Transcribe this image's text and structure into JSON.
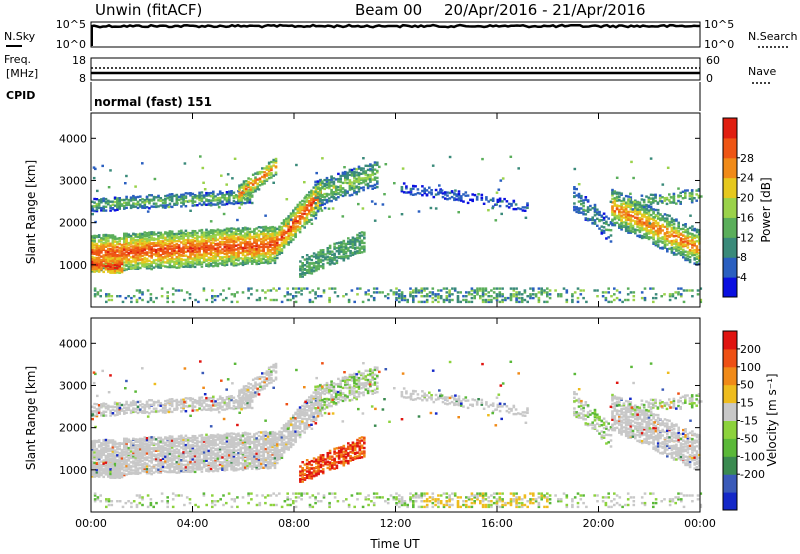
{
  "header": {
    "station": "Unwin (fitACF)",
    "beam": "Beam 00",
    "dates": "20/Apr/2016 - 21/Apr/2016"
  },
  "nsky_panel": {
    "left_label": "N.Sky",
    "left_ticks": [
      "10^5",
      "10^0"
    ],
    "right_ticks": [
      "10^5",
      "10^0"
    ],
    "right_label": "N.Search"
  },
  "freq_panel": {
    "left_label_1": "Freq.",
    "left_label_2": "[MHz]",
    "left_ticks": [
      "18",
      "8"
    ],
    "right_ticks": [
      "60",
      "0"
    ],
    "right_label": "Nave"
  },
  "cpid_panel": {
    "label": "CPID",
    "text": "normal (fast) 151"
  },
  "chart_data": [
    {
      "type": "heatmap",
      "name_on_chart": "Power [dB]",
      "ylabel": "Slant Range [km]",
      "ylim": [
        0,
        4600
      ],
      "yticks": [
        "1000",
        "2000",
        "3000",
        "4000"
      ],
      "colorbar_label": "Power [dB]",
      "colorbar_ticks": [
        "4",
        "8",
        "12",
        "16",
        "20",
        "24",
        "28"
      ],
      "colorbar_colors": [
        "#0a10e0",
        "#2a5fc0",
        "#3a8a7a",
        "#5aae5a",
        "#9ad24a",
        "#e6c81e",
        "#f08a18",
        "#ee5514",
        "#e01e10"
      ]
    },
    {
      "type": "heatmap",
      "ylabel": "Slant Range [km]",
      "ylim": [
        0,
        4600
      ],
      "yticks": [
        "1000",
        "2000",
        "3000",
        "4000"
      ],
      "colorbar_label": "Velocity [m s⁻¹]",
      "colorbar_ticks": [
        "200",
        "100",
        "50",
        "15",
        "-15",
        "-50",
        "-100",
        "-200"
      ],
      "colorbar_colors": [
        "#1428c8",
        "#3a5ab8",
        "#3a8a50",
        "#5ab838",
        "#8cd23c",
        "#c8c8c8",
        "#eebc1e",
        "#f08a18",
        "#ee5014",
        "#e01410"
      ],
      "xlabel": "Time UT",
      "xticks": [
        "00:00",
        "04:00",
        "08:00",
        "12:00",
        "16:00",
        "20:00",
        "00:00"
      ]
    }
  ]
}
